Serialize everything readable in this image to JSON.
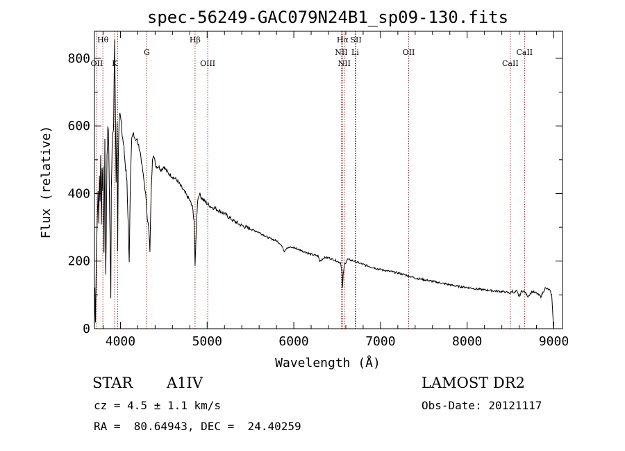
{
  "chart_data": {
    "type": "line",
    "title": "spec-56249-GAC079N24B1_sp09-130.fits",
    "xlabel": "Wavelength (Å)",
    "ylabel": "Flux (relative)",
    "xlim": [
      3700,
      9100
    ],
    "ylim": [
      0,
      880
    ],
    "x_ticks": [
      4000,
      5000,
      6000,
      7000,
      8000,
      9000
    ],
    "y_ticks": [
      0,
      200,
      400,
      600,
      800
    ],
    "grid": false,
    "series": [
      {
        "x": [
          3700,
          3705,
          3712,
          3720,
          3728,
          3735,
          3742,
          3750,
          3758,
          3765,
          3772,
          3780,
          3788,
          3795,
          3800,
          3810,
          3820,
          3830,
          3835,
          3845,
          3855,
          3865,
          3875,
          3885,
          3889,
          3895,
          3905,
          3920,
          3933,
          3940,
          3950,
          3960,
          3968,
          3975,
          3985,
          4000,
          4015,
          4030,
          4045,
          4060,
          4075,
          4090,
          4101,
          4115,
          4130,
          4150,
          4170,
          4190,
          4210,
          4230,
          4250,
          4270,
          4290,
          4310,
          4325,
          4340,
          4355,
          4370,
          4390,
          4410,
          4440,
          4470,
          4500,
          4550,
          4600,
          4650,
          4700,
          4750,
          4800,
          4830,
          4850,
          4861,
          4875,
          4890,
          4910,
          4930,
          4960,
          5000,
          5050,
          5100,
          5200,
          5300,
          5400,
          5500,
          5600,
          5700,
          5800,
          5850,
          5890,
          5920,
          6000,
          6100,
          6200,
          6280,
          6300,
          6350,
          6400,
          6450,
          6500,
          6540,
          6555,
          6563,
          6570,
          6585,
          6620,
          6700,
          6800,
          6900,
          7000,
          7100,
          7200,
          7300,
          7400,
          7500,
          7600,
          7700,
          7800,
          7900,
          8000,
          8100,
          8200,
          8300,
          8400,
          8450,
          8498,
          8520,
          8542,
          8570,
          8600,
          8630,
          8662,
          8700,
          8750,
          8800,
          8850,
          8900,
          8950,
          8975,
          8985,
          8995,
          9000
        ],
        "y": [
          5,
          120,
          30,
          180,
          280,
          350,
          420,
          300,
          450,
          380,
          520,
          300,
          470,
          420,
          480,
          220,
          560,
          170,
          250,
          500,
          600,
          550,
          350,
          180,
          100,
          400,
          560,
          600,
          860,
          680,
          420,
          600,
          230,
          500,
          620,
          640,
          600,
          550,
          520,
          470,
          440,
          300,
          200,
          430,
          560,
          580,
          560,
          560,
          540,
          520,
          480,
          440,
          400,
          330,
          300,
          230,
          420,
          500,
          510,
          480,
          480,
          470,
          480,
          460,
          450,
          440,
          420,
          400,
          380,
          360,
          320,
          180,
          300,
          380,
          400,
          390,
          380,
          370,
          360,
          355,
          340,
          320,
          305,
          295,
          285,
          270,
          260,
          250,
          230,
          240,
          240,
          230,
          220,
          215,
          200,
          210,
          210,
          205,
          200,
          195,
          170,
          120,
          160,
          190,
          205,
          200,
          190,
          182,
          175,
          170,
          165,
          158,
          150,
          145,
          140,
          135,
          130,
          125,
          122,
          118,
          115,
          112,
          110,
          108,
          105,
          112,
          105,
          112,
          95,
          112,
          110,
          95,
          110,
          105,
          95,
          120,
          115,
          100,
          60,
          10,
          0
        ]
      }
    ],
    "line_markers": [
      {
        "label": "Hθ",
        "x": 3797,
        "row": "top"
      },
      {
        "label": "OII",
        "x": 3727,
        "row": "low"
      },
      {
        "label": "K",
        "x": 3934,
        "row": "low"
      },
      {
        "label": "H",
        "x": 3968,
        "row": "none"
      },
      {
        "label": "G",
        "x": 4304,
        "row": "mid"
      },
      {
        "label": "Hβ",
        "x": 4861,
        "row": "top"
      },
      {
        "label": "OIII",
        "x": 5007,
        "row": "low"
      },
      {
        "label": "Hα",
        "x": 6563,
        "row": "top"
      },
      {
        "label": "SII",
        "x": 6717,
        "row": "top"
      },
      {
        "label": "NII",
        "x": 6548,
        "row": "mid"
      },
      {
        "label": "Li",
        "x": 6708,
        "row": "mid"
      },
      {
        "label": "NII",
        "x": 6583,
        "row": "low"
      },
      {
        "label": "OII",
        "x": 7325,
        "row": "mid"
      },
      {
        "label": "CaII",
        "x": 8662,
        "row": "mid"
      },
      {
        "label": "CaII",
        "x": 8498,
        "row": "low"
      }
    ]
  },
  "info": {
    "object_type": "STAR",
    "subclass": "A1IV",
    "survey": "LAMOST DR2",
    "cz": "cz = 4.5 ± 1.1 km/s",
    "obs_date": "Obs-Date: 20121117",
    "coords": "RA =  80.64943, DEC =  24.40259"
  }
}
